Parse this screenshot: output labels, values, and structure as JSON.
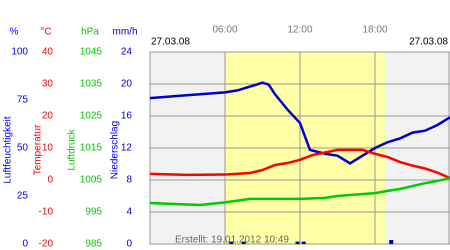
{
  "chart_data": {
    "type": "line",
    "date_left": "27.03.08",
    "date_right": "27.03.08",
    "credit": "Erstellt: 19.01.2012 10:49",
    "xlim": [
      0,
      24
    ],
    "xticks": [
      {
        "value": 6,
        "label": "06:00"
      },
      {
        "value": 12,
        "label": "12:00"
      },
      {
        "value": 18,
        "label": "18:00"
      }
    ],
    "daylight": [
      6,
      18.8
    ],
    "grid": true,
    "axes": [
      {
        "unit": "%",
        "label": "Luftfeuchtigkeit",
        "color": "#0000ff",
        "ylim": [
          0,
          100
        ],
        "yticks": [
          0,
          25,
          50,
          75,
          100
        ]
      },
      {
        "unit": "°C",
        "label": "Temperatur",
        "color": "#ff0000",
        "ylim": [
          -20,
          40
        ],
        "yticks": [
          -20,
          -10,
          0,
          10,
          20,
          30,
          40
        ]
      },
      {
        "unit": "hPa",
        "label": "Luftdruck",
        "color": "#00cc00",
        "ylim": [
          985,
          1045
        ],
        "yticks": [
          985,
          995,
          1005,
          1015,
          1025,
          1035,
          1045
        ]
      },
      {
        "unit": "mm/h",
        "label": "Niederschlag",
        "color": "#0000cc",
        "ylim": [
          0,
          24
        ],
        "yticks": [
          0,
          4,
          8,
          12,
          16,
          20,
          24
        ]
      }
    ],
    "series": [
      {
        "axis": 0,
        "color": "#0000cc",
        "x": [
          0,
          2,
          4,
          6,
          7,
          8,
          8.5,
          9,
          9.5,
          10,
          11,
          12,
          12.8,
          14,
          15,
          16,
          16.5,
          17,
          18,
          19,
          20,
          21,
          22,
          23,
          24
        ],
        "values": [
          76,
          77,
          78,
          79,
          80,
          82,
          83,
          84,
          83,
          78,
          70,
          63,
          49,
          47,
          46,
          42,
          44,
          46,
          50,
          53,
          55,
          58,
          59,
          62,
          66
        ]
      },
      {
        "axis": 1,
        "color": "#ff0000",
        "x": [
          0,
          3,
          6,
          8,
          9,
          10,
          11,
          12,
          13,
          14,
          15,
          16,
          17,
          18,
          19,
          20,
          21,
          22,
          23,
          24
        ],
        "values": [
          1.9,
          1.6,
          1.7,
          2.2,
          3.1,
          4.7,
          5.3,
          6.3,
          7.8,
          8.6,
          9.4,
          9.4,
          9.4,
          8.2,
          7.2,
          5.6,
          4.5,
          3.6,
          2.3,
          0.6
        ]
      },
      {
        "axis": 2,
        "color": "#00cc00",
        "x": [
          0,
          2,
          4,
          6,
          8,
          10,
          12,
          14,
          15,
          16,
          18,
          19,
          20,
          21,
          22,
          23,
          24
        ],
        "values": [
          997.8,
          997.5,
          997.2,
          998.0,
          999.1,
          999.1,
          999.1,
          999.4,
          1000,
          1000.3,
          1000.9,
          1001.6,
          1002.2,
          1003.1,
          1004.0,
          1004.7,
          1005.6
        ]
      },
      {
        "axis": 3,
        "color": "#0000cc",
        "bars": true,
        "x": [
          6.5,
          7.5,
          11.8,
          12.3,
          19.3
        ],
        "values": [
          0.3,
          0.3,
          0.3,
          0.3,
          0.5
        ]
      }
    ]
  }
}
